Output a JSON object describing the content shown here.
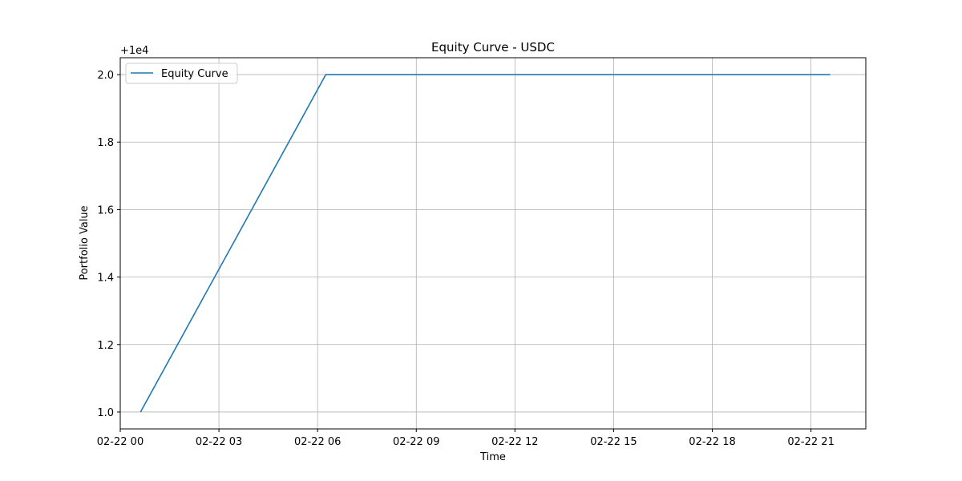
{
  "chart_data": {
    "type": "line",
    "title": "Equity Curve - USDC",
    "xlabel": "Time",
    "ylabel": "Portfolio Value",
    "y_offset_label": "+1e4",
    "x_tick_labels": [
      "02-22 00",
      "02-22 03",
      "02-22 06",
      "02-22 09",
      "02-22 12",
      "02-22 15",
      "02-22 18",
      "02-22 21"
    ],
    "x_tick_hours": [
      0,
      3,
      6,
      9,
      12,
      15,
      18,
      21
    ],
    "y_tick_labels": [
      "1.0",
      "1.2",
      "1.4",
      "1.6",
      "1.8",
      "2.0"
    ],
    "y_ticks": [
      1.0,
      1.2,
      1.4,
      1.6,
      1.8,
      2.0
    ],
    "xlim": [
      "2025-02-22 00:00",
      "2025-02-22 22:40"
    ],
    "ylim": [
      0.95,
      2.05
    ],
    "grid": true,
    "legend_position": "top-left",
    "series": [
      {
        "name": "Equity Curve",
        "color": "#1f77b4",
        "x": [
          "02-22 00:37",
          "02-22 06:15",
          "02-22 21:35"
        ],
        "y": [
          1.0,
          2.0,
          2.0
        ]
      }
    ]
  }
}
